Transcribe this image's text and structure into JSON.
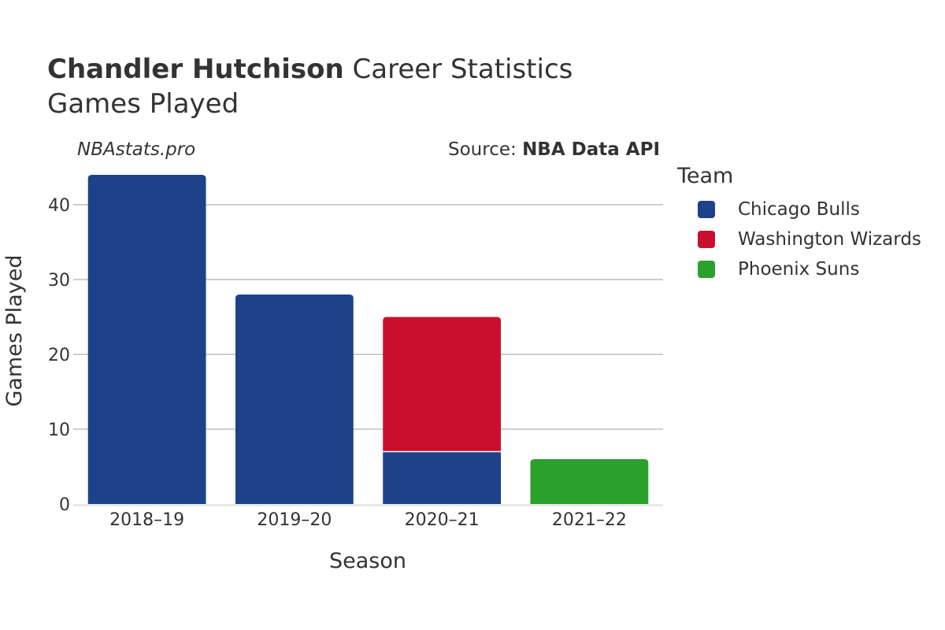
{
  "header": {
    "player_name": "Chandler Hutchison",
    "title_rest": "Career Statistics",
    "subtitle": "Games Played"
  },
  "watermark": "NBAstats.pro",
  "source": {
    "prefix": "Source:",
    "name": "NBA Data API"
  },
  "legend": {
    "title": "Team"
  },
  "chart_data": {
    "type": "bar",
    "stacked": true,
    "categories": [
      "2018–19",
      "2019–20",
      "2020–21",
      "2021–22"
    ],
    "series": [
      {
        "name": "Chicago Bulls",
        "color": "#1d428a",
        "values": [
          44,
          28,
          7,
          0
        ]
      },
      {
        "name": "Washington Wizards",
        "color": "#c8102e",
        "values": [
          0,
          0,
          18,
          0
        ]
      },
      {
        "name": "Phoenix Suns",
        "color": "#2ca02c",
        "values": [
          0,
          0,
          0,
          6
        ]
      }
    ],
    "xlabel": "Season",
    "ylabel": "Games Played",
    "ylim": [
      0,
      46
    ],
    "yticks": [
      0,
      10,
      20,
      30,
      40
    ],
    "grid": true,
    "legend_position": "right"
  }
}
